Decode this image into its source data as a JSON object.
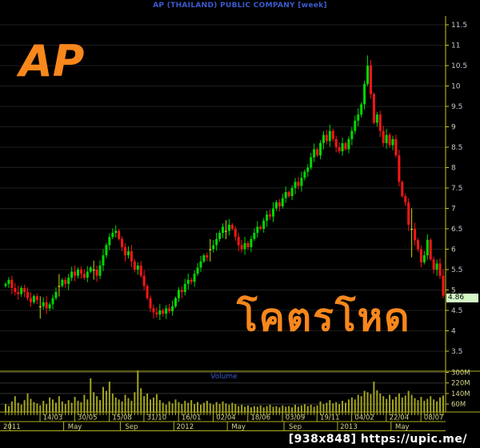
{
  "header": {
    "title": "AP (THAILAND) PUBLIC COMPANY [week]"
  },
  "overlays": {
    "symbol_watermark": "AP",
    "caption_thai": "โคตรโหด",
    "image_watermark": "[938x848] https://upic.me/"
  },
  "price_axis": {
    "last_price": "4.86",
    "y_ticks": [
      11.5,
      11,
      10.5,
      10,
      9.5,
      9,
      8.5,
      8,
      7.5,
      7,
      6.5,
      6,
      5.5,
      5,
      4.5,
      4,
      3.5
    ]
  },
  "volume_pane": {
    "label": "Volume",
    "ticks": [
      {
        "v": 300,
        "label": "300M"
      },
      {
        "v": 220,
        "label": "220M"
      },
      {
        "v": 140,
        "label": "140M"
      },
      {
        "v": 60,
        "label": "60M"
      }
    ]
  },
  "date_axis": {
    "row1": [
      {
        "label": "14/03",
        "week": 15
      },
      {
        "label": "30/05",
        "week": 26
      },
      {
        "label": "15/08",
        "week": 37
      },
      {
        "label": "31/10",
        "week": 48
      },
      {
        "label": "16/01",
        "week": 59
      },
      {
        "label": "02/04",
        "week": 70
      },
      {
        "label": "18/06",
        "week": 81
      },
      {
        "label": "03/09",
        "week": 92
      },
      {
        "label": "19/11",
        "week": 103
      },
      {
        "label": "04/02",
        "week": 114
      },
      {
        "label": "22/04",
        "week": 125
      },
      {
        "label": "08/07",
        "week": 136
      }
    ],
    "row2": [
      {
        "label": "2011",
        "week": 5,
        "text_left": true
      },
      {
        "label": "May",
        "week": 22
      },
      {
        "label": "Sep",
        "week": 40
      },
      {
        "label": "2012",
        "week": 57
      },
      {
        "label": "May",
        "week": 74
      },
      {
        "label": "Sep",
        "week": 92
      },
      {
        "label": "2013",
        "week": 109
      },
      {
        "label": "May",
        "week": 126
      }
    ]
  },
  "colors": {
    "up": "#00d800",
    "down": "#f81616",
    "doji": "#cfcf10",
    "volume_bar": "#a3a31c",
    "axis": "#c8c820",
    "band": "#b0b020",
    "price_grid": "#1e1e1e",
    "volume_grid": "#333333",
    "price_text": "#c8c8c8",
    "date_text": "#d6d68e",
    "blue_text": "#3b5bd0",
    "orange": "#f8871c",
    "tag_bg": "#d4f7c8"
  },
  "chart_data": {
    "type": "candlestick+volume",
    "symbol": "AP (THAILAND) PUBLIC COMPANY",
    "interval": "week",
    "title": "AP (THAILAND) PUBLIC COMPANY [week]",
    "y_range": [
      3.5,
      11.5
    ],
    "x_span_weeks": 140,
    "legend_position": "none",
    "grid": "horizontal-0.5-steps",
    "first_open": 5.1,
    "last_price": 4.86,
    "closes": [
      5.15,
      5.25,
      5.05,
      4.95,
      4.9,
      5.05,
      4.95,
      4.8,
      4.7,
      4.85,
      4.75,
      4.6,
      4.7,
      4.55,
      4.65,
      4.8,
      4.95,
      5.1,
      5.25,
      5.15,
      5.3,
      5.45,
      5.35,
      5.5,
      5.4,
      5.3,
      5.45,
      5.55,
      5.5,
      5.35,
      5.6,
      5.85,
      6.1,
      6.3,
      6.4,
      6.45,
      6.25,
      6.05,
      5.85,
      5.95,
      5.7,
      5.5,
      5.6,
      5.35,
      5.1,
      4.8,
      4.55,
      4.45,
      4.4,
      4.5,
      4.42,
      4.55,
      4.48,
      4.6,
      4.8,
      5.0,
      4.95,
      5.15,
      5.25,
      5.2,
      5.4,
      5.55,
      5.7,
      5.85,
      5.8,
      6.0,
      6.1,
      6.25,
      6.4,
      6.55,
      6.45,
      6.6,
      6.5,
      6.3,
      6.1,
      6.0,
      6.15,
      6.05,
      6.25,
      6.4,
      6.55,
      6.5,
      6.7,
      6.85,
      6.8,
      7.0,
      7.15,
      7.05,
      7.25,
      7.4,
      7.3,
      7.5,
      7.65,
      7.55,
      7.75,
      7.9,
      8.0,
      8.25,
      8.45,
      8.3,
      8.6,
      8.8,
      8.65,
      8.9,
      8.7,
      8.5,
      8.4,
      8.6,
      8.45,
      8.7,
      8.9,
      9.15,
      9.3,
      9.55,
      10.05,
      10.5,
      9.8,
      9.1,
      9.3,
      8.9,
      8.6,
      8.8,
      8.55,
      8.7,
      8.3,
      7.65,
      7.3,
      7.15,
      6.6,
      6.5,
      6.22,
      6.0,
      5.68,
      5.85,
      6.23,
      5.75,
      5.5,
      5.65,
      5.35,
      4.86
    ],
    "volumes_millions": [
      60,
      45,
      80,
      120,
      70,
      55,
      90,
      140,
      100,
      75,
      65,
      50,
      85,
      60,
      110,
      95,
      70,
      120,
      80,
      60,
      90,
      70,
      115,
      85,
      75,
      130,
      95,
      255,
      150,
      120,
      90,
      190,
      160,
      230,
      140,
      110,
      95,
      80,
      130,
      105,
      85,
      150,
      315,
      180,
      120,
      140,
      95,
      110,
      135,
      90,
      70,
      55,
      80,
      65,
      95,
      75,
      60,
      85,
      70,
      90,
      60,
      75,
      55,
      70,
      85,
      65,
      55,
      75,
      60,
      80,
      65,
      55,
      70,
      60,
      45,
      55,
      40,
      50,
      35,
      45,
      40,
      50,
      35,
      45,
      55,
      40,
      45,
      35,
      50,
      40,
      45,
      35,
      55,
      40,
      50,
      60,
      45,
      55,
      40,
      50,
      80,
      60,
      70,
      90,
      65,
      75,
      60,
      85,
      70,
      95,
      110,
      95,
      130,
      120,
      160,
      150,
      135,
      230,
      165,
      140,
      120,
      100,
      130,
      95,
      115,
      140,
      110,
      125,
      160,
      130,
      105,
      90,
      115,
      85,
      100,
      120,
      95,
      80,
      110,
      125
    ],
    "doji_weeks": [
      11,
      17,
      28,
      65,
      70,
      129
    ],
    "special_wicks": {
      "115": {
        "high": 10.75
      },
      "129": {
        "high": 7.0,
        "low": 5.8
      },
      "139": {
        "low": 4.8
      }
    }
  }
}
